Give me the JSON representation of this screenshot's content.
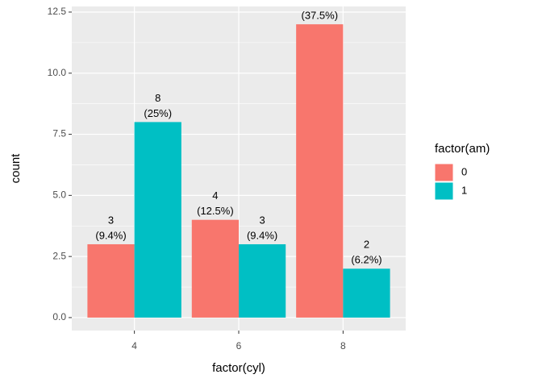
{
  "chart_data": {
    "type": "bar",
    "x_label": "factor(cyl)",
    "y_label": "count",
    "legend_title": "factor(am)",
    "legend": "right",
    "categories": [
      "4",
      "6",
      "8"
    ],
    "series": [
      {
        "name": "0",
        "color": "#F8766D",
        "values": [
          3,
          4,
          12
        ],
        "percent_labels": [
          "(9.4%)",
          "(12.5%)",
          "(37.5%)"
        ]
      },
      {
        "name": "1",
        "color": "#00BFC4",
        "values": [
          8,
          3,
          2
        ],
        "percent_labels": [
          "(25%)",
          "(9.4%)",
          "(6.2%)"
        ]
      }
    ],
    "ylim": [
      -0.53,
      12.73
    ],
    "yticks": [
      {
        "value": 0,
        "label": "0.0"
      },
      2.5,
      {
        "value": 5,
        "label": "5.0"
      },
      7.5,
      {
        "value": 10,
        "label": "10.0"
      },
      12.5
    ],
    "grid": true
  }
}
